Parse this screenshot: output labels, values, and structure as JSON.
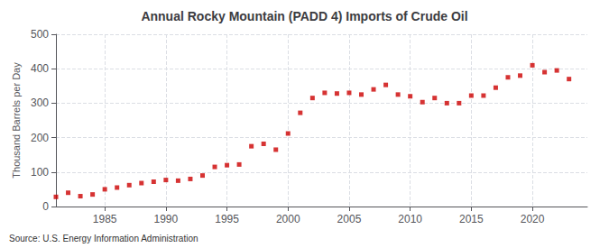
{
  "chart_data": {
    "type": "scatter",
    "title": "Annual Rocky Mountain (PADD 4) Imports of Crude Oil",
    "ylabel": "Thousand Barrels per Day",
    "annotation": "Source: U.S. Energy Information Administration",
    "color": "#cc0000",
    "marker": "square",
    "grid": true,
    "xlim": [
      1981.0,
      2024.5
    ],
    "xticks": [
      1985,
      1990,
      1995,
      2000,
      2005,
      2010,
      2015,
      2020
    ],
    "ylim": [
      0,
      500
    ],
    "yticks": [
      0,
      100,
      200,
      300,
      400,
      500
    ],
    "x": [
      1981,
      1982,
      1983,
      1984,
      1985,
      1986,
      1987,
      1988,
      1989,
      1990,
      1991,
      1992,
      1993,
      1994,
      1995,
      1996,
      1997,
      1998,
      1999,
      2000,
      2001,
      2002,
      2003,
      2004,
      2005,
      2006,
      2007,
      2008,
      2009,
      2010,
      2011,
      2012,
      2013,
      2014,
      2015,
      2016,
      2017,
      2018,
      2019,
      2020,
      2021,
      2022,
      2023
    ],
    "values": [
      28,
      40,
      30,
      35,
      50,
      55,
      62,
      68,
      72,
      77,
      75,
      80,
      90,
      115,
      120,
      122,
      175,
      182,
      165,
      212,
      272,
      315,
      330,
      328,
      330,
      325,
      340,
      353,
      325,
      320,
      303,
      315,
      300,
      300,
      322,
      322,
      345,
      375,
      380,
      410,
      390,
      395,
      370
    ]
  }
}
